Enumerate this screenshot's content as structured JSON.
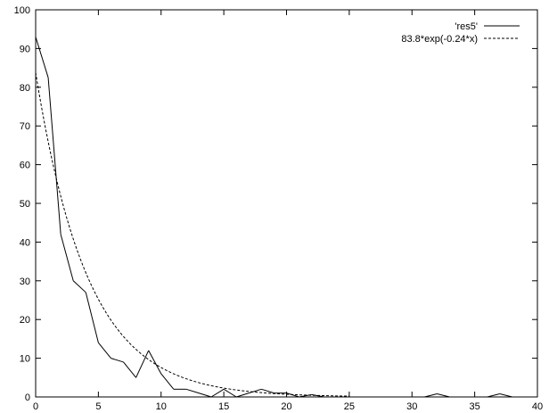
{
  "chart_data": {
    "type": "line",
    "title": "",
    "xlabel": "",
    "ylabel": "",
    "xlim": [
      0,
      40
    ],
    "ylim": [
      0,
      100
    ],
    "x_ticks": [
      0,
      5,
      10,
      15,
      20,
      25,
      30,
      35,
      40
    ],
    "y_ticks": [
      0,
      10,
      20,
      30,
      40,
      50,
      60,
      70,
      80,
      90,
      100
    ],
    "grid": false,
    "legend_position": "top-right",
    "series": [
      {
        "name": "'res5'",
        "style": "solid",
        "color": "#000000",
        "x": [
          0,
          1,
          2,
          3,
          4,
          5,
          6,
          7,
          8,
          9,
          10,
          11,
          12,
          13,
          14,
          15,
          16,
          17,
          18,
          19,
          20,
          21,
          22,
          23,
          24,
          25,
          30,
          31,
          32,
          33,
          36,
          37,
          38
        ],
        "y": [
          93,
          82.5,
          42,
          30,
          27,
          14,
          10,
          9,
          5,
          12,
          6,
          2,
          2,
          1,
          0,
          2,
          0,
          1,
          2,
          1,
          1,
          0,
          0.6,
          0,
          0,
          0,
          0,
          0,
          0.8,
          0,
          0,
          0.8,
          0
        ]
      },
      {
        "name": "83.8*exp(-0.24*x)",
        "style": "dashed",
        "color": "#000000",
        "function": {
          "a": 83.8,
          "b": -0.24
        },
        "x_range": [
          0,
          25
        ]
      }
    ]
  }
}
